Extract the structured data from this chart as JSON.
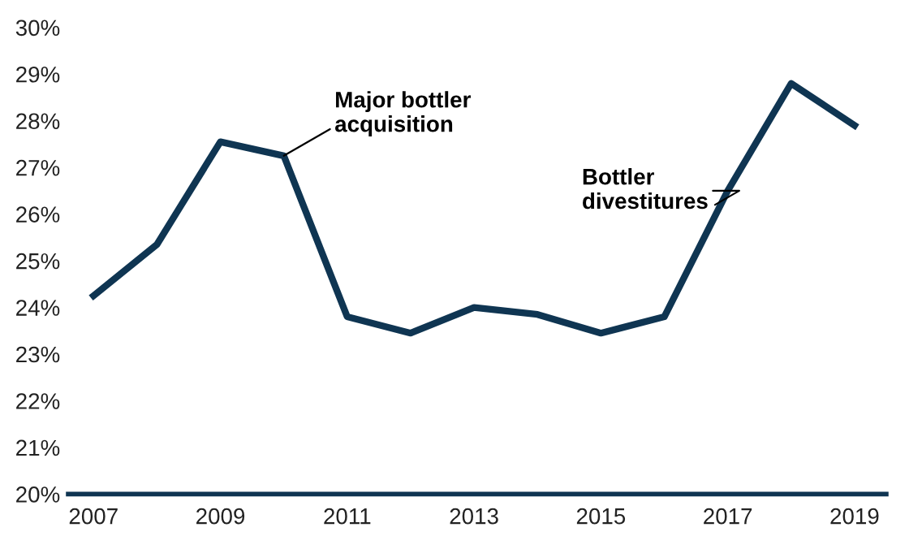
{
  "chart_data": {
    "type": "line",
    "x": [
      2007,
      2008,
      2009,
      2010,
      2011,
      2012,
      2013,
      2014,
      2015,
      2016,
      2017,
      2018,
      2019
    ],
    "series": [
      {
        "color": "#0f3552",
        "values": [
          24.25,
          25.35,
          27.55,
          27.25,
          23.8,
          23.45,
          24.0,
          23.85,
          23.45,
          23.8,
          26.5,
          28.8,
          27.9
        ]
      }
    ],
    "xlim": [
      2006.6,
      2019.5
    ],
    "xticks": [
      2007,
      2009,
      2011,
      2013,
      2015,
      2017,
      2019
    ],
    "ylim": [
      20,
      30
    ],
    "yticks": [
      {
        "value": 20,
        "label": "20%"
      },
      {
        "value": 21,
        "label": "21%"
      },
      {
        "value": 22,
        "label": "22%"
      },
      {
        "value": 23,
        "label": "23%"
      },
      {
        "value": 24,
        "label": "24%"
      },
      {
        "value": 25,
        "label": "25%"
      },
      {
        "value": 26,
        "label": "26%"
      },
      {
        "value": 27,
        "label": "27%"
      },
      {
        "value": 28,
        "label": "28%"
      },
      {
        "value": 29,
        "label": "29%"
      },
      {
        "value": 30,
        "label": "30%"
      }
    ],
    "annotations": [
      {
        "text": "Major bottler\nacquisition",
        "x": 2010,
        "y": 27.25
      },
      {
        "text": "Bottler\ndivestitures",
        "x": 2016.8,
        "y": 26.2
      }
    ],
    "grid": false,
    "legend": false,
    "marker": "none",
    "line_style": "solid"
  }
}
